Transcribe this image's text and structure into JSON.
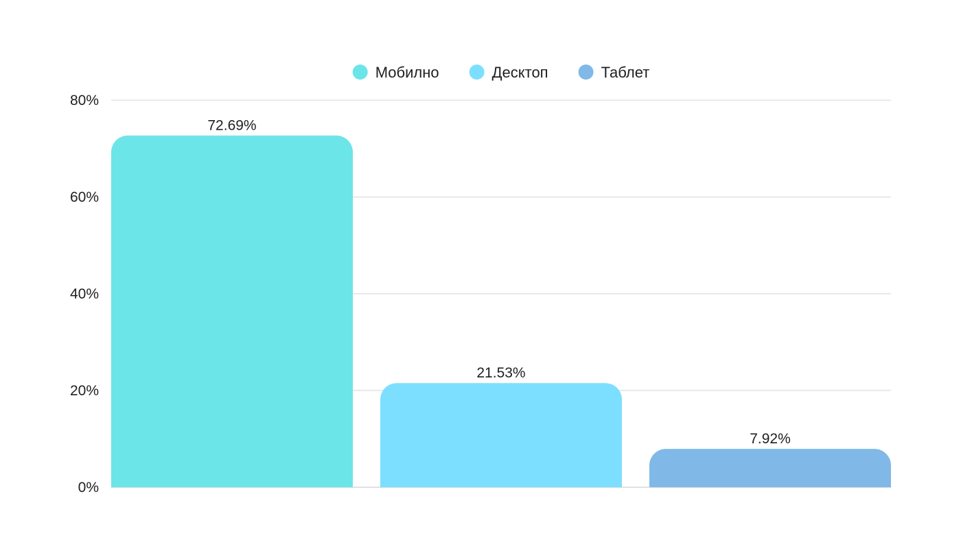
{
  "chart_data": {
    "type": "bar",
    "categories": [
      "Мобилно",
      "Десктоп",
      "Таблет"
    ],
    "values": [
      72.69,
      21.53,
      7.92
    ],
    "value_labels": [
      "72.69%",
      "21.53%",
      "7.92%"
    ],
    "colors": [
      "#6ce5e8",
      "#7ddfff",
      "#80b9e7"
    ],
    "legend": {
      "placement": "top-center",
      "items": [
        {
          "label": "Мобилно",
          "color": "#6ce5e8"
        },
        {
          "label": "Десктоп",
          "color": "#7ddfff"
        },
        {
          "label": "Таблет",
          "color": "#80b9e7"
        }
      ]
    },
    "ylim": [
      0,
      80
    ],
    "yticks": [
      0,
      20,
      40,
      60,
      80
    ],
    "ytick_labels": [
      "0%",
      "20%",
      "40%",
      "60%",
      "80%"
    ],
    "grid": true,
    "title": "",
    "xlabel": "",
    "ylabel": ""
  }
}
